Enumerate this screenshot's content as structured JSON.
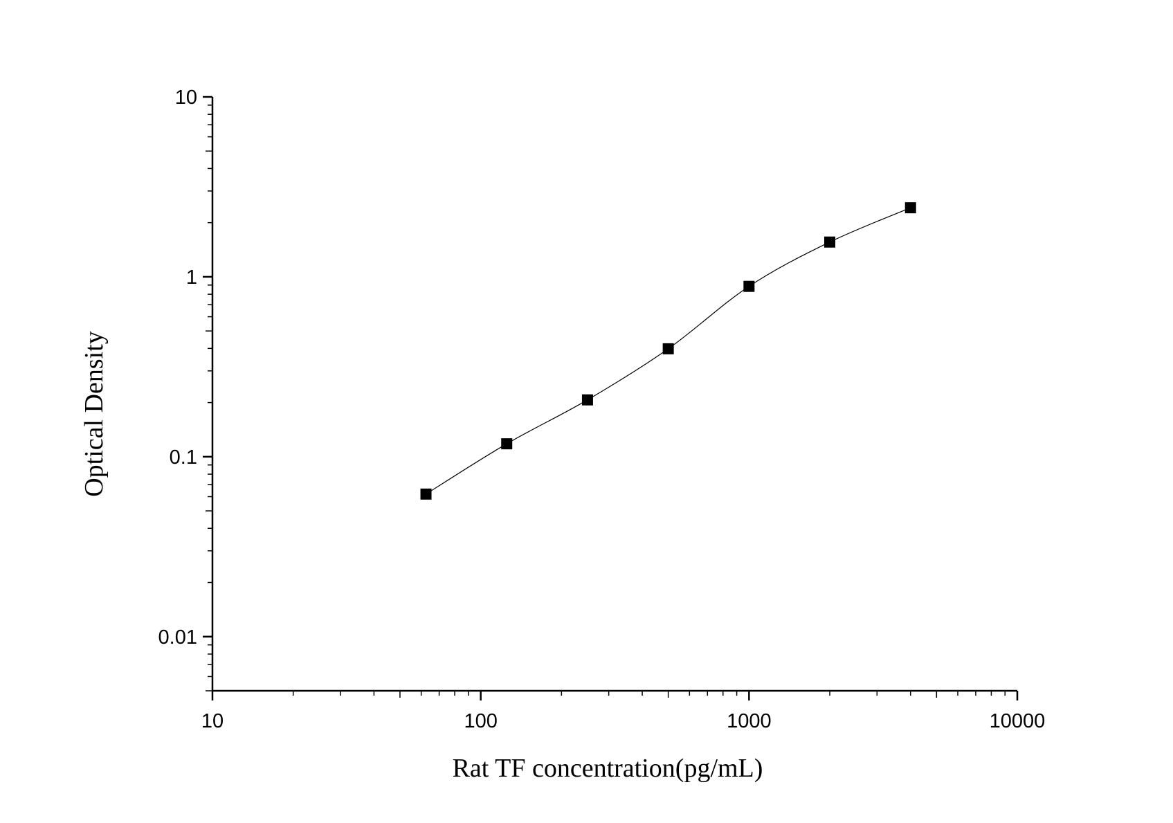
{
  "chart_data": {
    "type": "scatter",
    "xlabel": "Rat TF concentration(pg/mL)",
    "ylabel": "Optical Density",
    "x_scale": "log",
    "y_scale": "log",
    "xlim": [
      10,
      10000
    ],
    "ylim": [
      0.005,
      10
    ],
    "x_ticks": [
      {
        "value": 10,
        "label": "10"
      },
      {
        "value": 100,
        "label": "100"
      },
      {
        "value": 1000,
        "label": "1000"
      },
      {
        "value": 10000,
        "label": "10000"
      }
    ],
    "y_ticks": [
      {
        "value": 0.01,
        "label": "0.01"
      },
      {
        "value": 0.1,
        "label": "0.1"
      },
      {
        "value": 1,
        "label": "1"
      },
      {
        "value": 10,
        "label": "10"
      }
    ],
    "grid": false,
    "legend": "none",
    "marker_color": "#000000",
    "curve_color": "#000000",
    "series": [
      {
        "points": [
          {
            "x": 62.5,
            "y": 0.062
          },
          {
            "x": 125,
            "y": 0.118
          },
          {
            "x": 250,
            "y": 0.207
          },
          {
            "x": 500,
            "y": 0.398
          },
          {
            "x": 1000,
            "y": 0.885
          },
          {
            "x": 2000,
            "y": 1.56
          },
          {
            "x": 4000,
            "y": 2.42
          }
        ]
      }
    ]
  }
}
